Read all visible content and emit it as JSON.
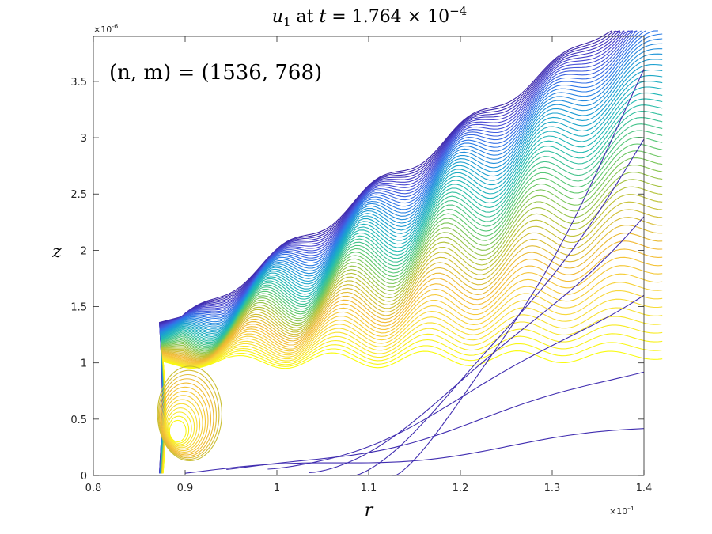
{
  "chart_data": {
    "type": "contour",
    "title_parts": {
      "var": "u",
      "sub": "1",
      "mid": " at ",
      "tvar": "t",
      "eq": " = 1.764 × 10",
      "exp": "−4"
    },
    "annotation": "(n, m) = (1536, 768)",
    "xlabel": "r",
    "ylabel": "z",
    "x_multiplier": "×10",
    "x_multiplier_exp": "-4",
    "y_multiplier": "×10",
    "y_multiplier_exp": "-6",
    "xlim": [
      0.8,
      1.4
    ],
    "ylim": [
      0,
      3.9
    ],
    "xticks": [
      0.8,
      0.9,
      1.0,
      1.1,
      1.2,
      1.3,
      1.4
    ],
    "xtick_labels": [
      "0.8",
      "0.9",
      "1",
      "1.1",
      "1.2",
      "1.3",
      "1.4"
    ],
    "yticks": [
      0,
      0.5,
      1,
      1.5,
      2,
      2.5,
      3,
      3.5
    ],
    "ytick_labels": [
      "0",
      "0.5",
      "1",
      "1.5",
      "2",
      "2.5",
      "3",
      "3.5"
    ],
    "grid": false,
    "colormap": [
      "#3e26a8",
      "#4a4bd6",
      "#2f78e8",
      "#1a9fd2",
      "#22bbb0",
      "#5cc86e",
      "#b8c234",
      "#f2b935",
      "#f7d93a",
      "#f9fb0e"
    ],
    "levels": 60
  }
}
